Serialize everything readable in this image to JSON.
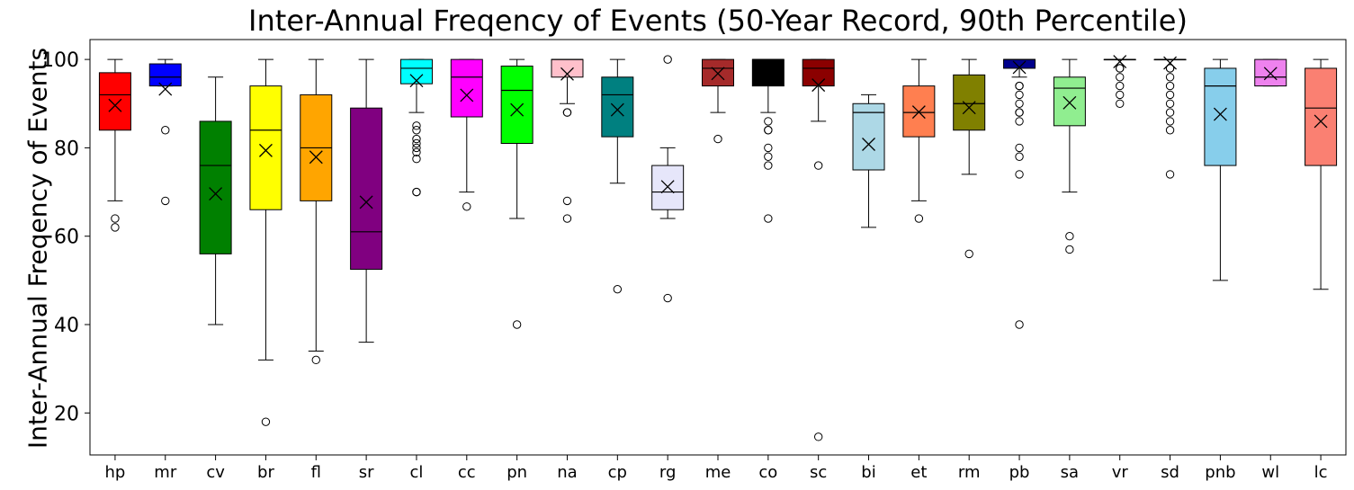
{
  "chart_data": {
    "type": "box",
    "title": "Inter-Annual Freqency of Events (50-Year Record, 90th Percentile)",
    "xlabel": "",
    "ylabel": "Inter-Annual Freqency of Events",
    "ylim": [
      10.5,
      104.5
    ],
    "yticks": [
      20,
      40,
      60,
      80,
      100
    ],
    "grid": false,
    "mean_marker": "x",
    "series": [
      {
        "category": "hp",
        "color": "#ff0000",
        "q1": 84,
        "median": 92,
        "q3": 97,
        "whisker_low": 68,
        "whisker_high": 100,
        "mean": 89.6,
        "outliers": [
          64,
          62
        ]
      },
      {
        "category": "mr",
        "color": "#0000ff",
        "q1": 94,
        "median": 96,
        "q3": 99,
        "whisker_low": 94,
        "whisker_high": 100,
        "mean": 93.3,
        "outliers": [
          84,
          68
        ]
      },
      {
        "category": "cv",
        "color": "#008000",
        "q1": 56,
        "median": 76,
        "q3": 86,
        "whisker_low": 40,
        "whisker_high": 96,
        "mean": 69.6,
        "outliers": []
      },
      {
        "category": "br",
        "color": "#ffff00",
        "q1": 66,
        "median": 84,
        "q3": 94,
        "whisker_low": 32,
        "whisker_high": 100,
        "mean": 79.4,
        "outliers": [
          18
        ]
      },
      {
        "category": "fl",
        "color": "#ffa500",
        "q1": 68,
        "median": 80,
        "q3": 92,
        "whisker_low": 34,
        "whisker_high": 100,
        "mean": 77.9,
        "outliers": [
          32
        ]
      },
      {
        "category": "sr",
        "color": "#800080",
        "q1": 52.5,
        "median": 61,
        "q3": 89,
        "whisker_low": 36,
        "whisker_high": 100,
        "mean": 67.7,
        "outliers": []
      },
      {
        "category": "cl",
        "color": "#00ffff",
        "q1": 94.5,
        "median": 98,
        "q3": 100,
        "whisker_low": 88,
        "whisker_high": 100,
        "mean": 95.2,
        "outliers": [
          85,
          84,
          82,
          81,
          80,
          79,
          77.5,
          70,
          70
        ]
      },
      {
        "category": "cc",
        "color": "#ff00ff",
        "q1": 87,
        "median": 96,
        "q3": 100,
        "whisker_low": 70,
        "whisker_high": 100,
        "mean": 91.9,
        "outliers": [
          66.7
        ]
      },
      {
        "category": "pn",
        "color": "#00ff00",
        "q1": 81,
        "median": 93,
        "q3": 98.5,
        "whisker_low": 64,
        "whisker_high": 100,
        "mean": 88.6,
        "outliers": [
          40
        ]
      },
      {
        "category": "na",
        "color": "#ffc0cb",
        "q1": 96,
        "median": 100,
        "q3": 100,
        "whisker_low": 90,
        "whisker_high": 100,
        "mean": 96.7,
        "outliers": [
          88,
          88,
          68,
          64
        ]
      },
      {
        "category": "cp",
        "color": "#008080",
        "q1": 82.5,
        "median": 92,
        "q3": 96,
        "whisker_low": 72,
        "whisker_high": 100,
        "mean": 88.6,
        "outliers": [
          48
        ]
      },
      {
        "category": "rg",
        "color": "#e6e6fa",
        "q1": 66,
        "median": 70,
        "q3": 76,
        "whisker_low": 64,
        "whisker_high": 80,
        "mean": 71.2,
        "outliers": [
          100,
          46
        ]
      },
      {
        "category": "me",
        "color": "#a52a2a",
        "q1": 94,
        "median": 98,
        "q3": 100,
        "whisker_low": 88,
        "whisker_high": 100,
        "mean": 96.8,
        "outliers": [
          82
        ]
      },
      {
        "category": "co",
        "color": "#000000",
        "q1": 94,
        "median": 100,
        "q3": 100,
        "whisker_low": 88,
        "whisker_high": 100,
        "mean": 96.3,
        "outliers": [
          86,
          84,
          84,
          80,
          78,
          76,
          64
        ]
      },
      {
        "category": "sc",
        "color": "#8b0000",
        "q1": 94,
        "median": 98,
        "q3": 100,
        "whisker_low": 86,
        "whisker_high": 100,
        "mean": 94.2,
        "outliers": [
          76,
          14.6
        ]
      },
      {
        "category": "bi",
        "color": "#add8e6",
        "q1": 75,
        "median": 88,
        "q3": 90,
        "whisker_low": 62,
        "whisker_high": 92,
        "mean": 80.8,
        "outliers": []
      },
      {
        "category": "et",
        "color": "#ff7f50",
        "q1": 82.5,
        "median": 88,
        "q3": 94,
        "whisker_low": 68,
        "whisker_high": 100,
        "mean": 88.1,
        "outliers": [
          64
        ]
      },
      {
        "category": "rm",
        "color": "#808000",
        "q1": 84,
        "median": 90,
        "q3": 96.5,
        "whisker_low": 74,
        "whisker_high": 100,
        "mean": 89.1,
        "outliers": [
          56
        ]
      },
      {
        "category": "pb",
        "color": "#00008b",
        "q1": 98,
        "median": 100,
        "q3": 100,
        "whisker_low": 96,
        "whisker_high": 100,
        "mean": 98.2,
        "outliers": [
          94,
          94,
          92,
          90,
          88,
          88,
          86,
          80,
          78,
          74,
          40
        ]
      },
      {
        "category": "sa",
        "color": "#90ee90",
        "q1": 85,
        "median": 93.5,
        "q3": 96,
        "whisker_low": 70,
        "whisker_high": 100,
        "mean": 90.2,
        "outliers": [
          60,
          57
        ]
      },
      {
        "category": "vr",
        "color": "#3d3d3d",
        "q1": 100,
        "median": 100,
        "q3": 100,
        "whisker_low": 100,
        "whisker_high": 100,
        "mean": 99.5,
        "outliers": [
          98,
          98,
          96,
          94,
          92,
          90
        ]
      },
      {
        "category": "sd",
        "color": "#3d3d3d",
        "q1": 100,
        "median": 100,
        "q3": 100,
        "whisker_low": 100,
        "whisker_high": 100,
        "mean": 99.2,
        "outliers": [
          98,
          98,
          96,
          94,
          92,
          90,
          88,
          86,
          84,
          74
        ]
      },
      {
        "category": "pnb",
        "color": "#87ceeb",
        "q1": 76,
        "median": 94,
        "q3": 98,
        "whisker_low": 50,
        "whisker_high": 100,
        "mean": 87.6,
        "outliers": []
      },
      {
        "category": "wl",
        "color": "#ee82ee",
        "q1": 94,
        "median": 96,
        "q3": 100,
        "whisker_low": 94,
        "whisker_high": 100,
        "mean": 96.8,
        "outliers": []
      },
      {
        "category": "lc",
        "color": "#fa8072",
        "q1": 76,
        "median": 89,
        "q3": 98,
        "whisker_low": 48,
        "whisker_high": 100,
        "mean": 86,
        "outliers": []
      }
    ]
  }
}
